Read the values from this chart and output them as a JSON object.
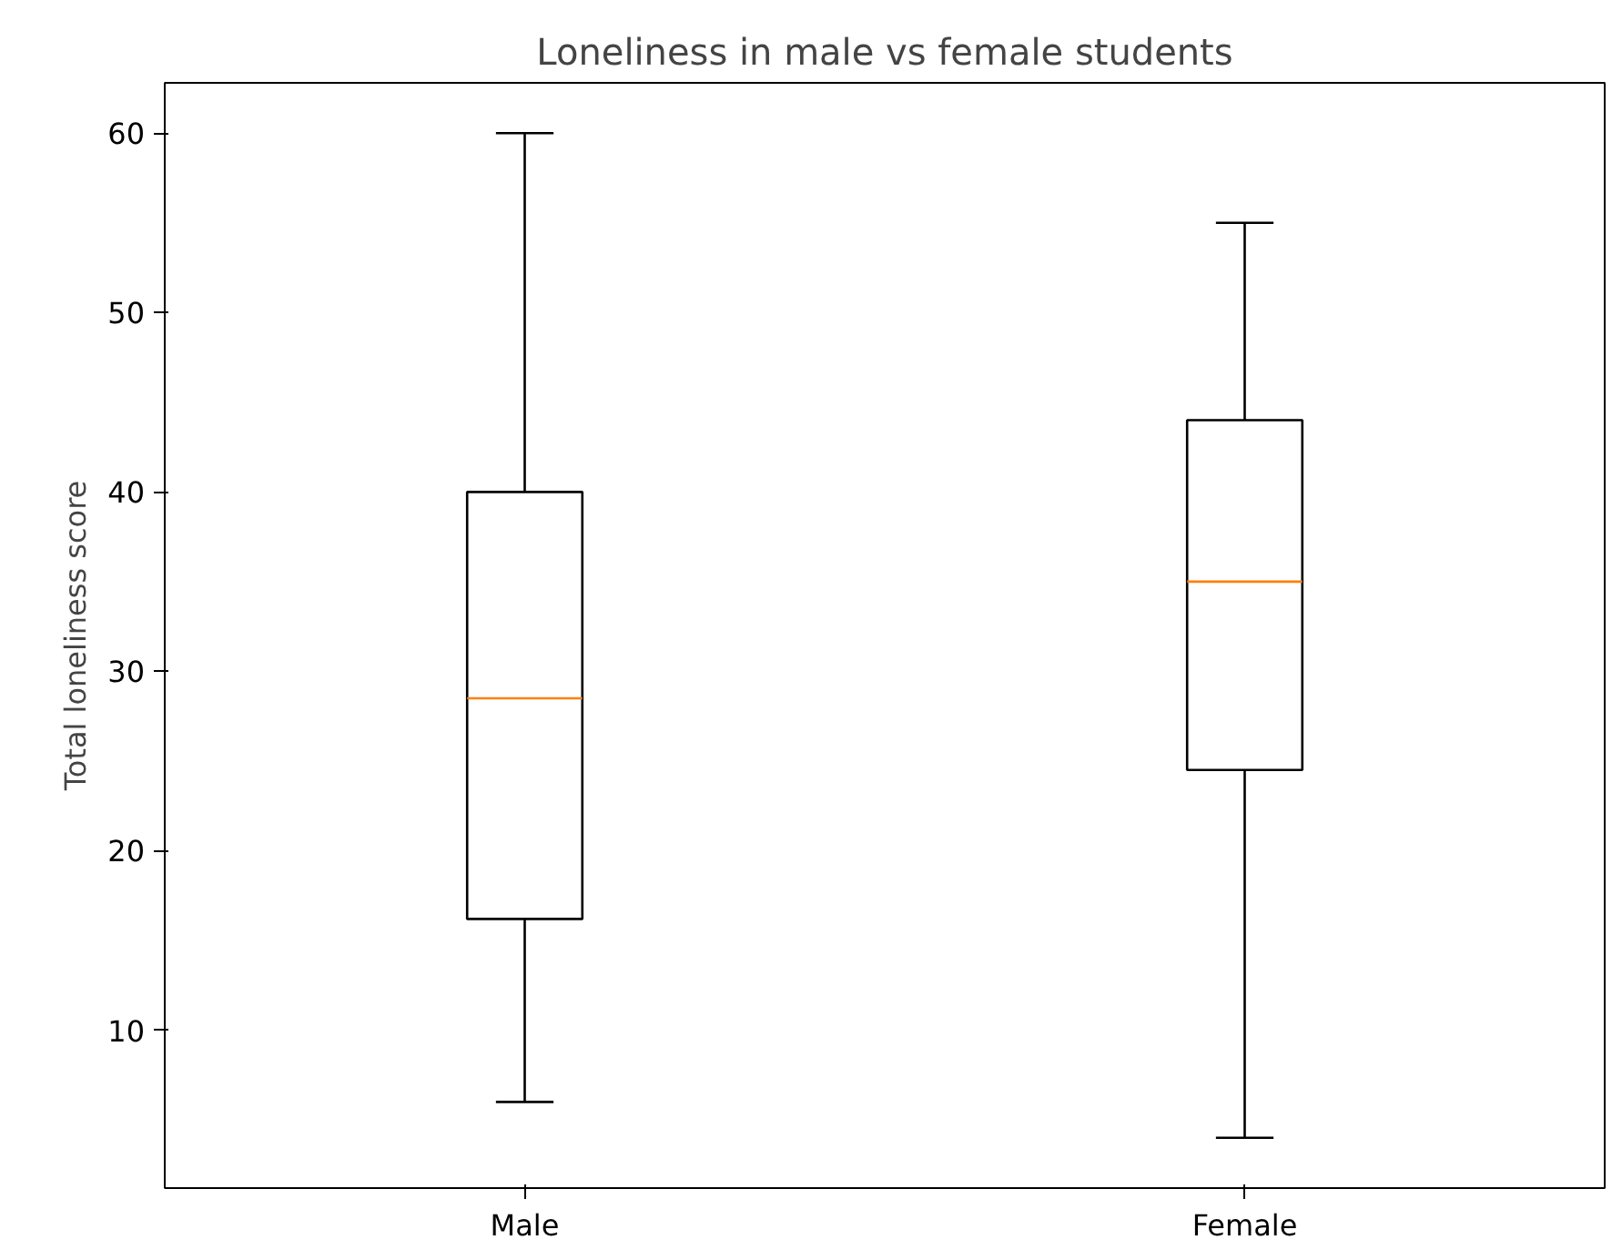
{
  "chart_data": {
    "type": "box",
    "title": "Loneliness in male vs female students",
    "ylabel": "Total loneliness score",
    "categories": [
      "Male",
      "Female"
    ],
    "boxes": [
      {
        "low": 6,
        "q1": 16.2,
        "median": 28.5,
        "q3": 40,
        "high": 60
      },
      {
        "low": 4,
        "q1": 24.5,
        "median": 35,
        "q3": 44,
        "high": 55
      }
    ],
    "ylim": [
      1.2,
      62.8
    ],
    "yticks": [
      10,
      20,
      30,
      40,
      50,
      60
    ],
    "grid": false
  }
}
